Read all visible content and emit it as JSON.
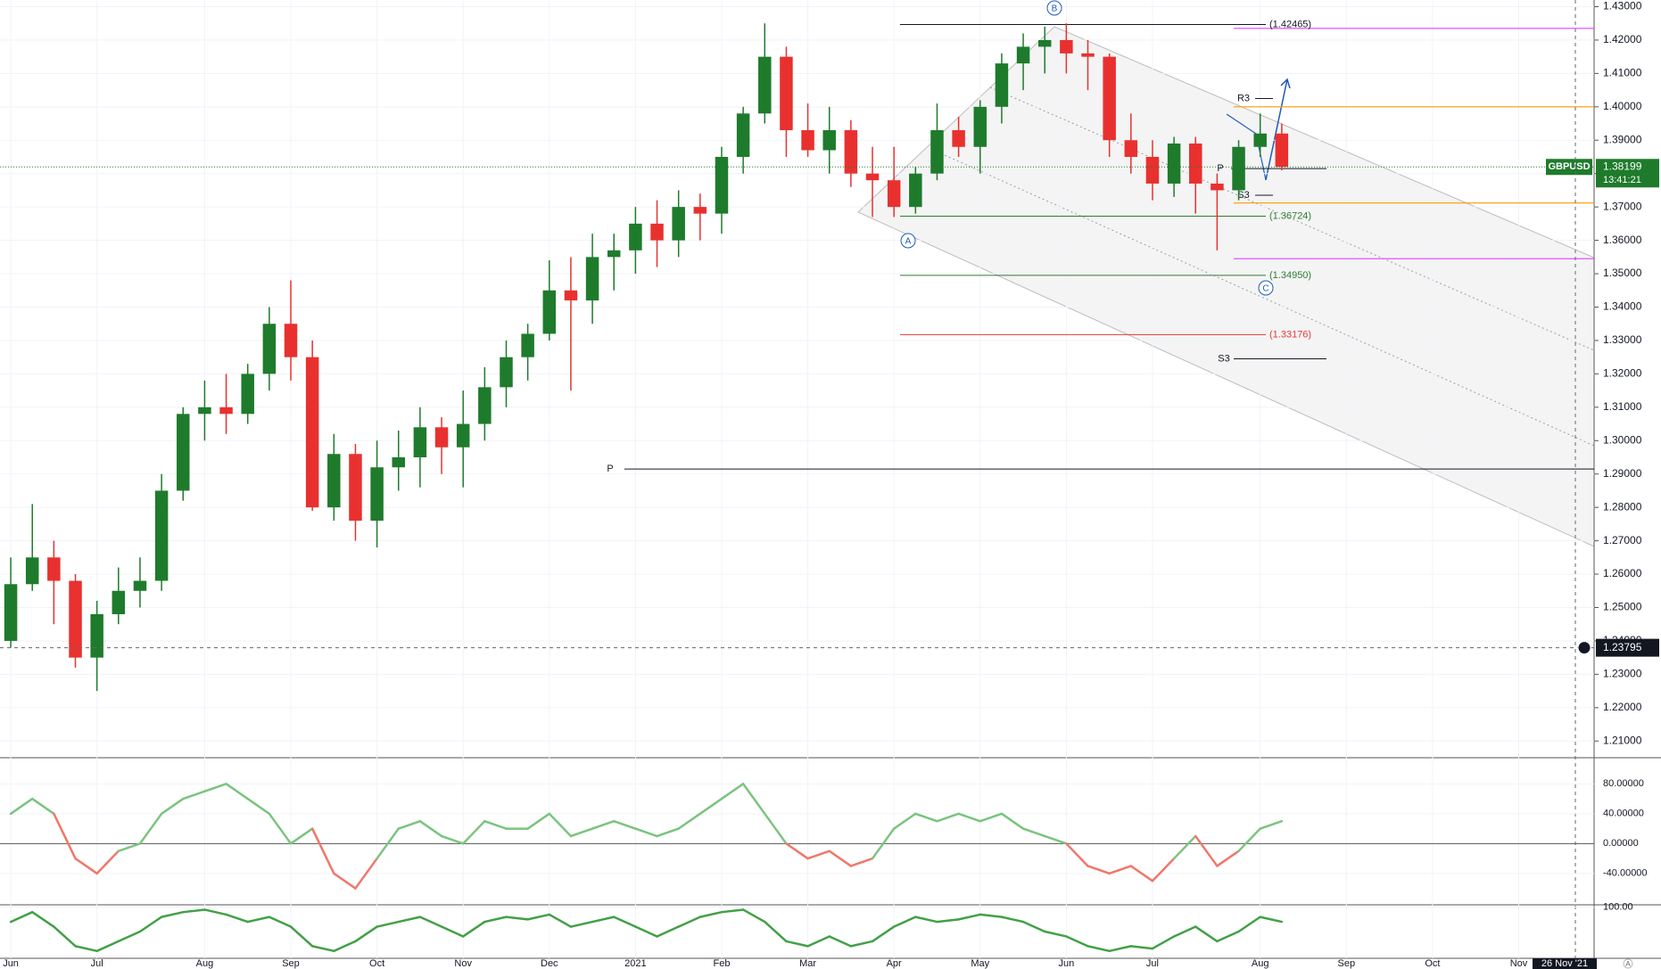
{
  "chart_data": {
    "type": "candlestick",
    "symbol": "GBPUSD",
    "last_price": 1.38199,
    "countdown": "13:41:21",
    "crosshair": {
      "price": 1.23795,
      "date": "26 Nov '21"
    },
    "auto_label": "A",
    "up_color": "#1e7b2c",
    "down_color": "#e8312f",
    "grid": true,
    "categories": [
      "Jun",
      null,
      null,
      null,
      "Jul",
      null,
      null,
      null,
      null,
      "Aug",
      null,
      null,
      null,
      "Sep",
      null,
      null,
      null,
      "Oct",
      null,
      null,
      null,
      "Nov",
      null,
      null,
      null,
      "Dec",
      null,
      null,
      null,
      "2021",
      null,
      null,
      null,
      "Feb",
      null,
      null,
      null,
      "Mar",
      null,
      null,
      null,
      "Apr",
      null,
      null,
      null,
      "May",
      null,
      null,
      null,
      "Jun",
      null,
      null,
      null,
      "Jul",
      null,
      null,
      null,
      null,
      "Aug",
      null,
      null,
      null,
      "Sep",
      null,
      null,
      null,
      "Oct",
      null,
      null,
      null,
      "Nov",
      null,
      null,
      null
    ],
    "open": [
      1.24,
      1.257,
      1.265,
      1.258,
      1.235,
      1.248,
      1.255,
      1.258,
      1.285,
      1.308,
      1.31,
      1.308,
      1.32,
      1.335,
      1.325,
      1.28,
      1.296,
      1.276,
      1.292,
      1.295,
      1.304,
      1.298,
      1.305,
      1.316,
      1.325,
      1.332,
      1.345,
      1.342,
      1.355,
      1.357,
      1.365,
      1.36,
      1.37,
      1.368,
      1.385,
      1.398,
      1.415,
      1.393,
      1.387,
      1.393,
      1.38,
      1.378,
      1.37,
      1.38,
      1.393,
      1.388,
      1.4,
      1.413,
      1.418,
      1.42,
      1.416,
      1.415,
      1.39,
      1.385,
      1.377,
      1.389,
      1.377,
      1.375,
      1.388,
      1.392,
      null,
      null,
      null,
      null,
      null,
      null,
      null,
      null,
      null,
      null,
      null,
      null,
      null,
      null
    ],
    "high": [
      1.265,
      1.281,
      1.27,
      1.26,
      1.252,
      1.262,
      1.265,
      1.29,
      1.31,
      1.318,
      1.32,
      1.323,
      1.34,
      1.348,
      1.33,
      1.302,
      1.299,
      1.3,
      1.303,
      1.31,
      1.307,
      1.315,
      1.322,
      1.33,
      1.335,
      1.354,
      1.355,
      1.362,
      1.362,
      1.37,
      1.372,
      1.375,
      1.374,
      1.388,
      1.4,
      1.425,
      1.418,
      1.401,
      1.4,
      1.396,
      1.388,
      1.388,
      1.382,
      1.401,
      1.397,
      1.402,
      1.416,
      1.422,
      1.424,
      1.425,
      1.42,
      1.416,
      1.398,
      1.39,
      1.391,
      1.391,
      1.38,
      1.39,
      1.398,
      1.395,
      null,
      null,
      null,
      null,
      null,
      null,
      null,
      null,
      null,
      null,
      null,
      null,
      null,
      null
    ],
    "low": [
      1.238,
      1.255,
      1.245,
      1.232,
      1.225,
      1.245,
      1.25,
      1.255,
      1.282,
      1.3,
      1.302,
      1.305,
      1.315,
      1.318,
      1.279,
      1.276,
      1.27,
      1.268,
      1.285,
      1.286,
      1.29,
      1.286,
      1.3,
      1.31,
      1.318,
      1.33,
      1.315,
      1.335,
      1.345,
      1.35,
      1.352,
      1.355,
      1.36,
      1.362,
      1.38,
      1.395,
      1.385,
      1.385,
      1.38,
      1.376,
      1.367,
      1.367,
      1.368,
      1.378,
      1.385,
      1.38,
      1.395,
      1.405,
      1.41,
      1.41,
      1.405,
      1.385,
      1.38,
      1.372,
      1.373,
      1.368,
      1.357,
      1.372,
      1.385,
      1.381,
      null,
      null,
      null,
      null,
      null,
      null,
      null,
      null,
      null,
      null,
      null,
      null,
      null,
      null
    ],
    "close": [
      1.257,
      1.265,
      1.258,
      1.235,
      1.248,
      1.255,
      1.258,
      1.285,
      1.308,
      1.31,
      1.308,
      1.32,
      1.335,
      1.325,
      1.28,
      1.296,
      1.276,
      1.292,
      1.295,
      1.304,
      1.298,
      1.305,
      1.316,
      1.325,
      1.332,
      1.345,
      1.342,
      1.355,
      1.357,
      1.365,
      1.36,
      1.37,
      1.368,
      1.385,
      1.398,
      1.415,
      1.393,
      1.387,
      1.393,
      1.38,
      1.378,
      1.37,
      1.38,
      1.393,
      1.388,
      1.4,
      1.413,
      1.418,
      1.42,
      1.416,
      1.415,
      1.39,
      1.385,
      1.377,
      1.389,
      1.377,
      1.375,
      1.388,
      1.392,
      1.382,
      null,
      null,
      null,
      null,
      null,
      null,
      null,
      null,
      null,
      null,
      null,
      null,
      null,
      null
    ],
    "ylim": [
      1.205,
      1.432
    ],
    "yticks": [
      {
        "value": 1.21,
        "label": "1.21000"
      },
      {
        "value": 1.22,
        "label": "1.22000"
      },
      {
        "value": 1.23,
        "label": "1.23000"
      },
      {
        "value": 1.24,
        "label": "1.24000"
      },
      {
        "value": 1.25,
        "label": "1.25000"
      },
      {
        "value": 1.26,
        "label": "1.26000"
      },
      {
        "value": 1.27,
        "label": "1.27000"
      },
      {
        "value": 1.28,
        "label": "1.28000"
      },
      {
        "value": 1.29,
        "label": "1.29000"
      },
      {
        "value": 1.3,
        "label": "1.30000"
      },
      {
        "value": 1.31,
        "label": "1.31000"
      },
      {
        "value": 1.32,
        "label": "1.32000"
      },
      {
        "value": 1.33,
        "label": "1.33000"
      },
      {
        "value": 1.34,
        "label": "1.34000"
      },
      {
        "value": 1.35,
        "label": "1.35000"
      },
      {
        "value": 1.36,
        "label": "1.36000"
      },
      {
        "value": 1.37,
        "label": "1.37000"
      },
      {
        "value": 1.38,
        "label": "1.38000"
      },
      {
        "value": 1.39,
        "label": "1.39000"
      },
      {
        "value": 1.4,
        "label": "1.40000"
      },
      {
        "value": 1.41,
        "label": "1.41000"
      },
      {
        "value": 1.42,
        "label": "1.42000"
      },
      {
        "value": 1.43,
        "label": "1.43000"
      }
    ],
    "levels": [
      {
        "value": 1.42465,
        "label": "(1.42465)",
        "color": "#131722"
      },
      {
        "value": 1.36724,
        "label": "(1.36724)",
        "color": "#2e7d32"
      },
      {
        "value": 1.3495,
        "label": "(1.34950)",
        "color": "#2e7d32"
      },
      {
        "value": 1.33176,
        "label": "(1.33176)",
        "color": "#e53935"
      }
    ],
    "zones": [
      {
        "value": 1.4235,
        "color": "#e040fb"
      },
      {
        "value": 1.4,
        "color": "#ff9800"
      },
      {
        "value": 1.3712,
        "color": "#ff9800"
      },
      {
        "value": 1.3545,
        "color": "#e040fb"
      }
    ],
    "pivots": [
      {
        "name": "P",
        "value": 1.2915
      },
      {
        "name": "R3",
        "value": 1.4025
      },
      {
        "name": "S3",
        "value": 1.3735
      },
      {
        "name": "P",
        "value": 1.3815
      },
      {
        "name": "S3",
        "value": 1.3245
      }
    ],
    "waves": [
      "A",
      "B",
      "C"
    ],
    "indicators": [
      {
        "type": "line",
        "ylim": [
          -82,
          115
        ],
        "yticks": [
          {
            "value": 80,
            "label": "80.00000"
          },
          {
            "value": 40,
            "label": "40.00000"
          },
          {
            "value": 0,
            "label": "0.00000"
          },
          {
            "value": -40,
            "label": "-40.00000"
          }
        ],
        "up_color": "#7bc47f",
        "down_color": "#f0776a",
        "values": [
          40,
          60,
          40,
          -20,
          -40,
          -10,
          0,
          40,
          60,
          70,
          80,
          60,
          40,
          0,
          20,
          -40,
          -60,
          -20,
          20,
          30,
          10,
          0,
          30,
          20,
          20,
          40,
          10,
          20,
          30,
          20,
          10,
          20,
          40,
          60,
          80,
          40,
          0,
          -20,
          -10,
          -30,
          -20,
          20,
          40,
          30,
          40,
          30,
          40,
          20,
          10,
          0,
          -30,
          -40,
          -30,
          -50,
          -20,
          10,
          -30,
          -10,
          20,
          30,
          null,
          null,
          null,
          null,
          null,
          null,
          null,
          null,
          null,
          null,
          null,
          null,
          null,
          null
        ]
      },
      {
        "type": "line",
        "ylim": [
          -5,
          105
        ],
        "yticks": [
          {
            "value": 100,
            "label": "100.00"
          }
        ],
        "color": "#43a047",
        "values": [
          70,
          90,
          60,
          20,
          10,
          30,
          50,
          80,
          90,
          95,
          85,
          70,
          80,
          60,
          20,
          10,
          30,
          60,
          70,
          80,
          60,
          40,
          70,
          80,
          75,
          85,
          60,
          70,
          80,
          60,
          40,
          60,
          80,
          90,
          95,
          70,
          30,
          20,
          40,
          20,
          30,
          60,
          80,
          70,
          75,
          85,
          80,
          70,
          50,
          40,
          20,
          10,
          20,
          15,
          40,
          60,
          30,
          50,
          80,
          70,
          null,
          null,
          null,
          null,
          null,
          null,
          null,
          null,
          null,
          null,
          null,
          null,
          null,
          null
        ]
      }
    ]
  }
}
